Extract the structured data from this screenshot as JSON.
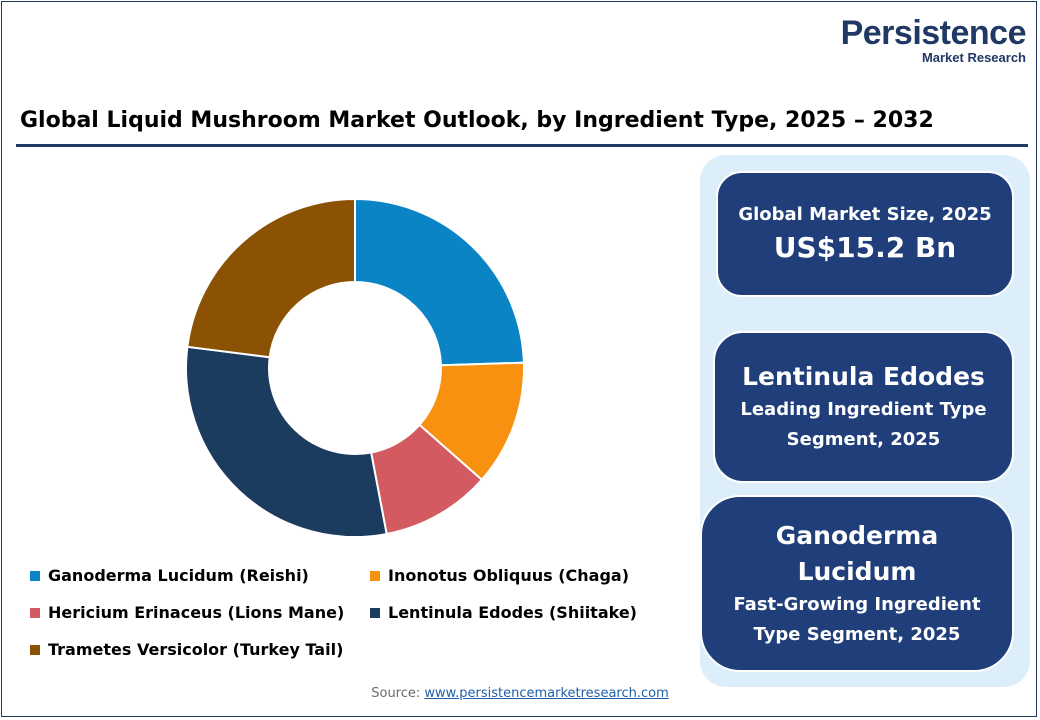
{
  "logo": {
    "main": "Persistence",
    "sub": "Market Research"
  },
  "title": "Global Liquid Mushroom Market Outlook, by Ingredient Type, 2025 – 2032",
  "chart_data": {
    "type": "pie",
    "variant": "donut",
    "title": "Global Liquid Mushroom Market Outlook, by Ingredient Type, 2025 – 2032",
    "categories": [
      "Ganoderma Lucidum (Reishi)",
      "Inonotus Obliquus (Chaga)",
      "Hericium Erinaceus (Lions Mane)",
      "Lentinula Edodes (Shiitake)",
      "Trametes Versicolor (Turkey Tail)"
    ],
    "values": [
      24.5,
      12.0,
      10.5,
      30.0,
      23.0
    ],
    "unit": "%",
    "colors": [
      "#0b84c6",
      "#f7910f",
      "#d25a60",
      "#1b3b5f",
      "#8b5204"
    ],
    "legend_position": "bottom"
  },
  "stats": {
    "market_size_label": "Global Market Size, 2025",
    "market_size_value": "US$15.2 Bn",
    "leading_name": "Lentinula Edodes",
    "leading_desc_1": "Leading Ingredient Type",
    "leading_desc_2": "Segment, 2025",
    "fast_name_1": "Ganoderma",
    "fast_name_2": "Lucidum",
    "fast_desc_1": "Fast-Growing Ingredient",
    "fast_desc_2": "Type Segment, 2025"
  },
  "source": {
    "label": "Source:",
    "link": "www.persistencemarketresearch.com"
  }
}
